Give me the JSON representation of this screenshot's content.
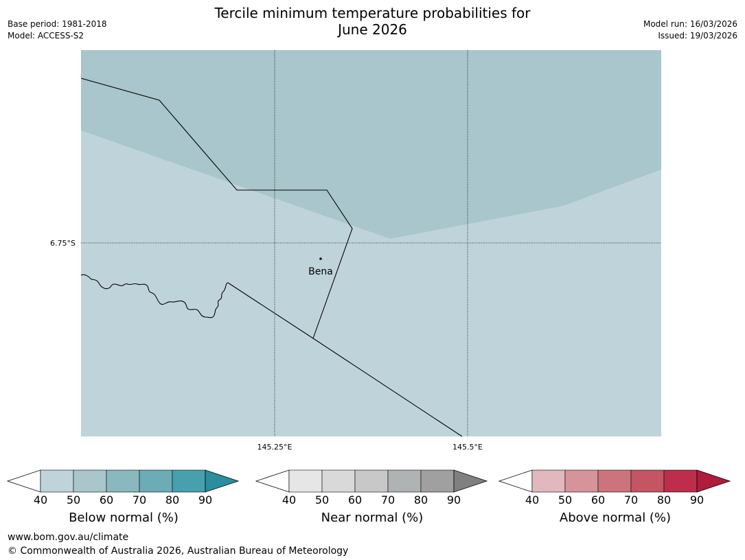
{
  "header": {
    "title_line1": "Tercile minimum temperature probabilities for",
    "title_line2": "June 2026",
    "base_period": "Base period: 1981-2018",
    "model": "Model: ACCESS-S2",
    "model_run": "Model run: 16/03/2026",
    "issued": "Issued: 19/03/2026"
  },
  "map": {
    "lat_label": "6.75°S",
    "lon_labels": [
      "145.25°E",
      "145.5°E"
    ],
    "place_name": "Bena",
    "colors": {
      "below_50": "#a8c6cb",
      "below_40": "#bfd4da"
    }
  },
  "colorbars": [
    {
      "label": "Below normal (%)",
      "ticks": [
        "40",
        "50",
        "60",
        "70",
        "80",
        "90"
      ],
      "colors": [
        "#bfd4da",
        "#a8c6cb",
        "#89b8be",
        "#6cacb7",
        "#47a0ad",
        "#2a8e9e"
      ]
    },
    {
      "label": "Near normal (%)",
      "ticks": [
        "40",
        "50",
        "60",
        "70",
        "80",
        "90"
      ],
      "colors": [
        "#e6e6e6",
        "#d9d9d9",
        "#c8c8c8",
        "#b0b3b3",
        "#a0a0a0",
        "#808080"
      ]
    },
    {
      "label": "Above normal (%)",
      "ticks": [
        "40",
        "50",
        "60",
        "70",
        "80",
        "90"
      ],
      "colors": [
        "#e1b8bd",
        "#d6939a",
        "#cc747c",
        "#c45563",
        "#be2e4a",
        "#b01c3c"
      ]
    }
  ],
  "footer": {
    "url": "www.bom.gov.au/climate",
    "copyright": "© Commonwealth of Australia 2026, Australian Bureau of Meteorology"
  }
}
